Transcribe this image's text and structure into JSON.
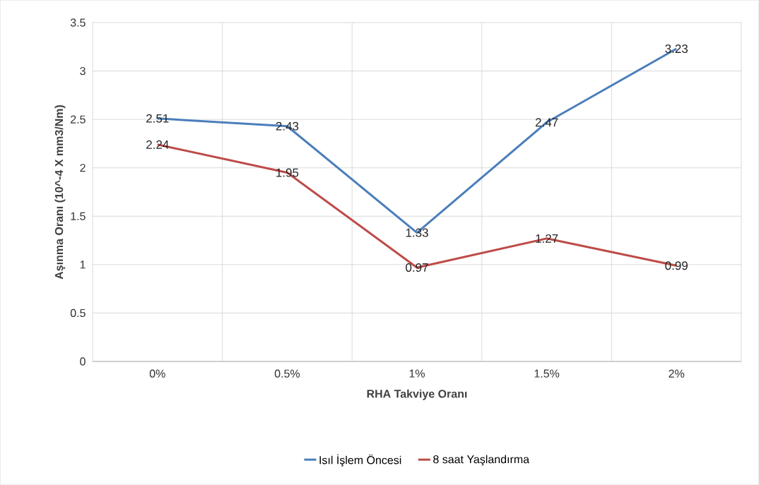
{
  "chart_data": {
    "type": "line",
    "xlabel": "RHA Takviye Oranı",
    "ylabel": "Aşınma Oranı (10^-4 X mm3/Nm)",
    "categories": [
      "0%",
      "0.5%",
      "1%",
      "1.5%",
      "2%"
    ],
    "series": [
      {
        "name": "Isıl İşlem Öncesi",
        "color": "#4a7ebb",
        "values": [
          2.51,
          2.43,
          1.33,
          2.47,
          3.23
        ]
      },
      {
        "name": "8 saat Yaşlandırma",
        "color": "#be4b48",
        "values": [
          2.24,
          1.95,
          0.97,
          1.27,
          0.99
        ]
      }
    ],
    "ylim": [
      0,
      3.5
    ],
    "yticks": [
      0,
      0.5,
      1,
      1.5,
      2,
      2.5,
      3,
      3.5
    ],
    "grid": true,
    "legend": "bottom",
    "data_labels": true,
    "marker": "none",
    "line_style": "solid"
  }
}
